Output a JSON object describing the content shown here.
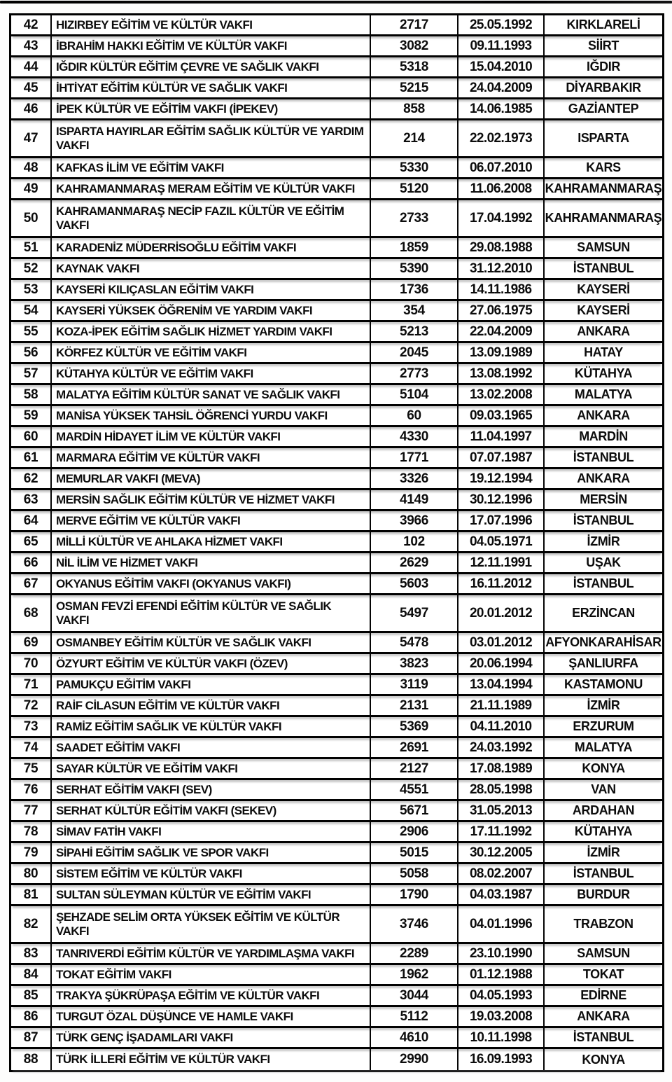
{
  "document": {
    "type": "scanned-table-page",
    "language": "tr",
    "ink_color": "#0c0c0c",
    "paper_color": "#fdfdfc"
  },
  "table": {
    "columns": [
      "row_number",
      "foundation_name",
      "registry_number",
      "date",
      "city"
    ],
    "rows": [
      {
        "no": "42",
        "name": "HIZIRBEY EĞİTİM VE KÜLTÜR VAKFI",
        "number": "2717",
        "date": "25.05.1992",
        "city": "KIRKLARELİ"
      },
      {
        "no": "43",
        "name": "İBRAHİM HAKKI EĞİTİM VE KÜLTÜR VAKFI",
        "number": "3082",
        "date": "09.11.1993",
        "city": "SİİRT"
      },
      {
        "no": "44",
        "name": "IĞDIR KÜLTÜR EĞİTİM ÇEVRE VE SAĞLIK VAKFI",
        "number": "5318",
        "date": "15.04.2010",
        "city": "IĞDIR"
      },
      {
        "no": "45",
        "name": "İHTİYAT EĞİTİM KÜLTÜR VE SAĞLIK VAKFI",
        "number": "5215",
        "date": "24.04.2009",
        "city": "DİYARBAKIR"
      },
      {
        "no": "46",
        "name": "İPEK KÜLTÜR VE EĞİTİM VAKFI (İPEKEV)",
        "number": "858",
        "date": "14.06.1985",
        "city": "GAZİANTEP"
      },
      {
        "no": "47",
        "name": "ISPARTA HAYIRLAR EĞİTİM SAĞLIK KÜLTÜR VE YARDIM VAKFI",
        "number": "214",
        "date": "22.02.1973",
        "city": "ISPARTA"
      },
      {
        "no": "48",
        "name": "KAFKAS İLİM VE EĞİTİM VAKFI",
        "number": "5330",
        "date": "06.07.2010",
        "city": "KARS"
      },
      {
        "no": "49",
        "name": "KAHRAMANMARAŞ MERAM EĞİTİM VE KÜLTÜR VAKFI",
        "number": "5120",
        "date": "11.06.2008",
        "city": "KAHRAMANMARAŞ"
      },
      {
        "no": "50",
        "name": "KAHRAMANMARAŞ NECİP FAZIL KÜLTÜR VE EĞİTİM VAKFI",
        "number": "2733",
        "date": "17.04.1992",
        "city": "KAHRAMANMARAŞ"
      },
      {
        "no": "51",
        "name": "KARADENİZ MÜDERRİSOĞLU EĞİTİM VAKFI",
        "number": "1859",
        "date": "29.08.1988",
        "city": "SAMSUN"
      },
      {
        "no": "52",
        "name": "KAYNAK VAKFI",
        "number": "5390",
        "date": "31.12.2010",
        "city": "İSTANBUL"
      },
      {
        "no": "53",
        "name": "KAYSERİ KILIÇASLAN EĞİTİM VAKFI",
        "number": "1736",
        "date": "14.11.1986",
        "city": "KAYSERİ"
      },
      {
        "no": "54",
        "name": "KAYSERİ YÜKSEK ÖĞRENİM VE YARDIM VAKFI",
        "number": "354",
        "date": "27.06.1975",
        "city": "KAYSERİ"
      },
      {
        "no": "55",
        "name": "KOZA-İPEK EĞİTİM SAĞLIK HİZMET YARDIM VAKFI",
        "number": "5213",
        "date": "22.04.2009",
        "city": "ANKARA"
      },
      {
        "no": "56",
        "name": "KÖRFEZ KÜLTÜR VE EĞİTİM VAKFI",
        "number": "2045",
        "date": "13.09.1989",
        "city": "HATAY"
      },
      {
        "no": "57",
        "name": "KÜTAHYA KÜLTÜR VE EĞİTİM VAKFI",
        "number": "2773",
        "date": "13.08.1992",
        "city": "KÜTAHYA"
      },
      {
        "no": "58",
        "name": "MALATYA EĞİTİM KÜLTÜR SANAT VE SAĞLIK VAKFI",
        "number": "5104",
        "date": "13.02.2008",
        "city": "MALATYA"
      },
      {
        "no": "59",
        "name": "MANİSA YÜKSEK TAHSİL ÖĞRENCİ YURDU VAKFI",
        "number": "60",
        "date": "09.03.1965",
        "city": "ANKARA"
      },
      {
        "no": "60",
        "name": "MARDİN HİDAYET İLİM VE KÜLTÜR VAKFI",
        "number": "4330",
        "date": "11.04.1997",
        "city": "MARDİN"
      },
      {
        "no": "61",
        "name": "MARMARA EĞİTİM VE KÜLTÜR VAKFI",
        "number": "1771",
        "date": "07.07.1987",
        "city": "İSTANBUL"
      },
      {
        "no": "62",
        "name": "MEMURLAR VAKFI (MEVA)",
        "number": "3326",
        "date": "19.12.1994",
        "city": "ANKARA"
      },
      {
        "no": "63",
        "name": "MERSİN SAĞLIK EĞİTİM KÜLTÜR VE HİZMET VAKFI",
        "number": "4149",
        "date": "30.12.1996",
        "city": "MERSİN"
      },
      {
        "no": "64",
        "name": "MERVE EĞİTİM VE KÜLTÜR VAKFI",
        "number": "3966",
        "date": "17.07.1996",
        "city": "İSTANBUL"
      },
      {
        "no": "65",
        "name": "MİLLİ KÜLTÜR VE AHLAKA HİZMET VAKFI",
        "number": "102",
        "date": "04.05.1971",
        "city": "İZMİR"
      },
      {
        "no": "66",
        "name": "NİL İLİM VE HİZMET VAKFI",
        "number": "2629",
        "date": "12.11.1991",
        "city": "UŞAK"
      },
      {
        "no": "67",
        "name": "OKYANUS EĞİTİM VAKFI (OKYANUS VAKFI)",
        "number": "5603",
        "date": "16.11.2012",
        "city": "İSTANBUL"
      },
      {
        "no": "68",
        "name": "OSMAN FEVZİ EFENDİ EĞİTİM KÜLTÜR VE SAĞLIK VAKFI",
        "number": "5497",
        "date": "20.01.2012",
        "city": "ERZİNCAN"
      },
      {
        "no": "69",
        "name": "OSMANBEY EĞİTİM KÜLTÜR VE SAĞLIK VAKFI",
        "number": "5478",
        "date": "03.01.2012",
        "city": "AFYONKARAHİSAR"
      },
      {
        "no": "70",
        "name": "ÖZYURT EĞİTİM VE KÜLTÜR VAKFI (ÖZEV)",
        "number": "3823",
        "date": "20.06.1994",
        "city": "ŞANLIURFA"
      },
      {
        "no": "71",
        "name": "PAMUKÇU EĞİTİM VAKFI",
        "number": "3119",
        "date": "13.04.1994",
        "city": "KASTAMONU"
      },
      {
        "no": "72",
        "name": "RAİF CİLASUN EĞİTİM VE KÜLTÜR VAKFI",
        "number": "2131",
        "date": "21.11.1989",
        "city": "İZMİR"
      },
      {
        "no": "73",
        "name": "RAMİZ EĞİTİM SAĞLIK VE KÜLTÜR VAKFI",
        "number": "5369",
        "date": "04.11.2010",
        "city": "ERZURUM"
      },
      {
        "no": "74",
        "name": "SAADET EĞİTİM VAKFI",
        "number": "2691",
        "date": "24.03.1992",
        "city": "MALATYA"
      },
      {
        "no": "75",
        "name": "SAYAR KÜLTÜR VE EĞİTİM VAKFI",
        "number": "2127",
        "date": "17.08.1989",
        "city": "KONYA"
      },
      {
        "no": "76",
        "name": "SERHAT EĞİTİM VAKFI (SEV)",
        "number": "4551",
        "date": "28.05.1998",
        "city": "VAN"
      },
      {
        "no": "77",
        "name": "SERHAT KÜLTÜR EĞİTİM VAKFI (SEKEV)",
        "number": "5671",
        "date": "31.05.2013",
        "city": "ARDAHAN"
      },
      {
        "no": "78",
        "name": "SİMAV FATİH VAKFI",
        "number": "2906",
        "date": "17.11.1992",
        "city": "KÜTAHYA"
      },
      {
        "no": "79",
        "name": "SİPAHİ EĞİTİM SAĞLIK VE SPOR VAKFI",
        "number": "5015",
        "date": "30.12.2005",
        "city": "İZMİR"
      },
      {
        "no": "80",
        "name": "SİSTEM EĞİTİM VE KÜLTÜR VAKFI",
        "number": "5058",
        "date": "08.02.2007",
        "city": "İSTANBUL"
      },
      {
        "no": "81",
        "name": "SULTAN SÜLEYMAN KÜLTÜR VE EĞİTİM VAKFI",
        "number": "1790",
        "date": "04.03.1987",
        "city": "BURDUR"
      },
      {
        "no": "82",
        "name": "ŞEHZADE SELİM ORTA YÜKSEK EĞİTİM VE KÜLTÜR VAKFI",
        "number": "3746",
        "date": "04.01.1996",
        "city": "TRABZON"
      },
      {
        "no": "83",
        "name": "TANRIVERDİ EĞİTİM KÜLTÜR VE YARDIMLAŞMA VAKFI",
        "number": "2289",
        "date": "23.10.1990",
        "city": "SAMSUN"
      },
      {
        "no": "84",
        "name": "TOKAT EĞİTİM VAKFI",
        "number": "1962",
        "date": "01.12.1988",
        "city": "TOKAT"
      },
      {
        "no": "85",
        "name": "TRAKYA ŞÜKRÜPAŞA EĞİTİM VE KÜLTÜR VAKFI",
        "number": "3044",
        "date": "04.05.1993",
        "city": "EDİRNE"
      },
      {
        "no": "86",
        "name": "TURGUT ÖZAL DÜŞÜNCE VE HAMLE VAKFI",
        "number": "5112",
        "date": "19.03.2008",
        "city": "ANKARA"
      },
      {
        "no": "87",
        "name": "TÜRK GENÇ İŞADAMLARI VAKFI",
        "number": "4610",
        "date": "10.11.1998",
        "city": "İSTANBUL"
      },
      {
        "no": "88",
        "name": "TÜRK İLLERİ EĞİTİM VE KÜLTÜR VAKFI",
        "number": "2990",
        "date": "16.09.1993",
        "city": "KONYA"
      }
    ]
  }
}
